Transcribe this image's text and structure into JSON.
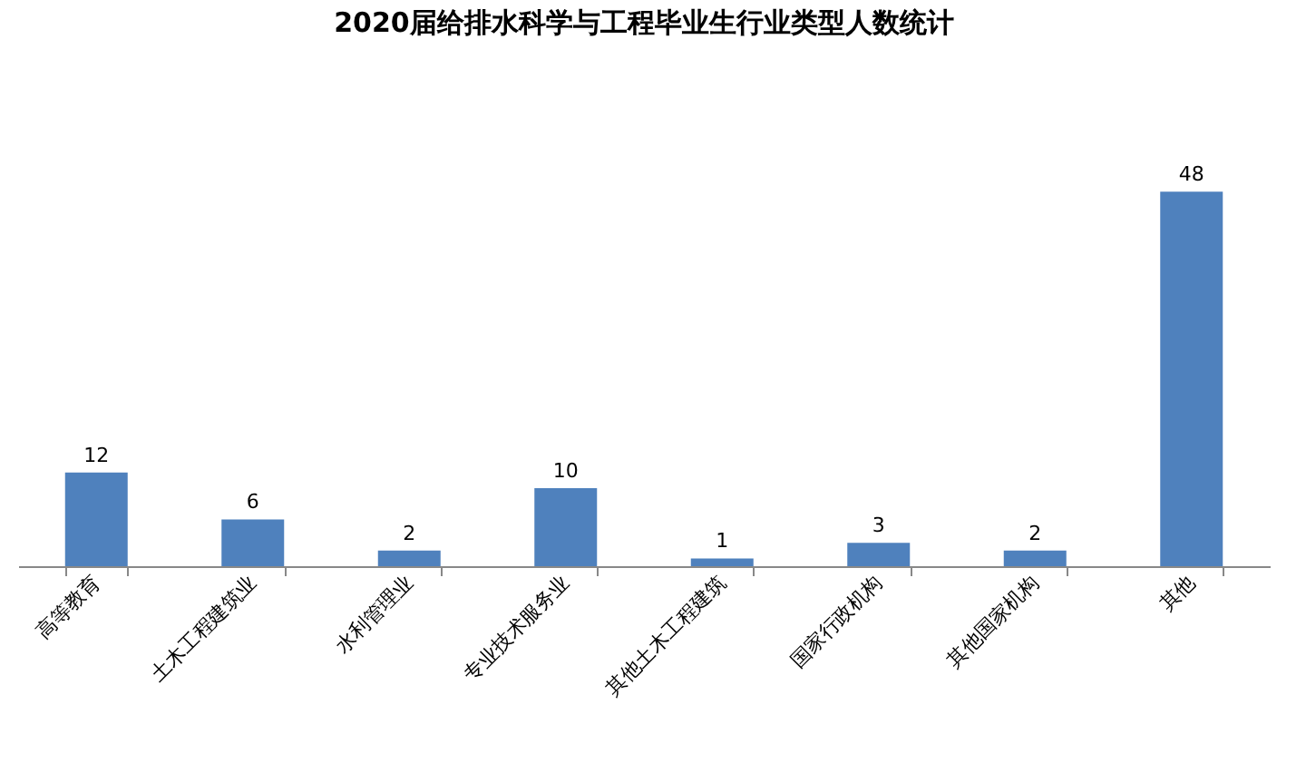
{
  "chart_data": {
    "type": "bar",
    "title": "2020届给排水科学与工程毕业生行业类型人数统计",
    "categories": [
      "高等教育",
      "土木工程建筑业",
      "水利管理业",
      "专业技术服务业",
      "其他土木工程建筑",
      "国家行政机构",
      "其他国家机构",
      "其他"
    ],
    "values": [
      12,
      6,
      2,
      10,
      1,
      3,
      2,
      48
    ],
    "color": "#4f81bd",
    "data_labels": true,
    "grid": false
  }
}
